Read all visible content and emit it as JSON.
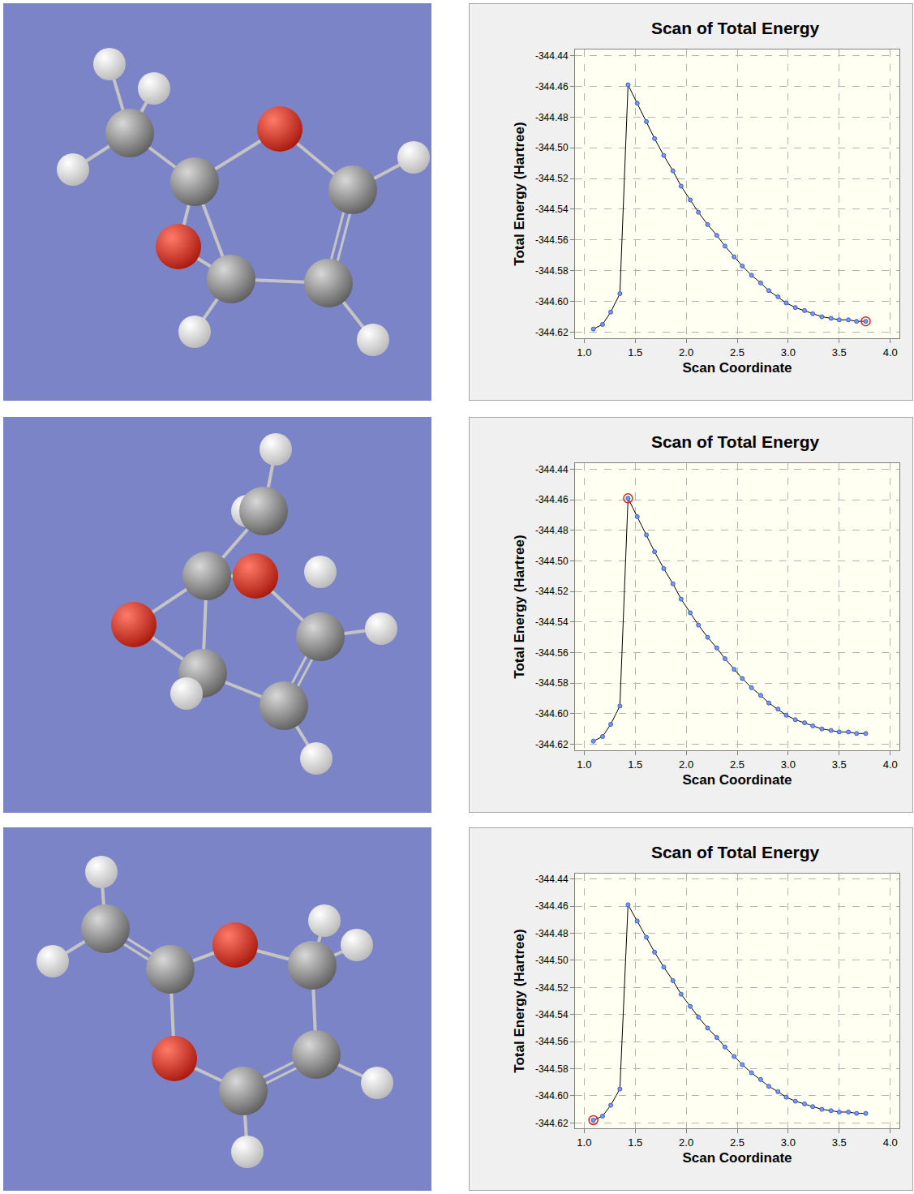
{
  "chart_data": [
    {
      "type": "line",
      "title": "Scan of Total Energy",
      "x_label": "Scan Coordinate",
      "y_label": "Total Energy (Hartree)",
      "x": [
        1.09,
        1.18,
        1.26,
        1.35,
        1.43,
        1.52,
        1.61,
        1.69,
        1.78,
        1.87,
        1.95,
        2.04,
        2.12,
        2.21,
        2.3,
        2.38,
        2.47,
        2.55,
        2.64,
        2.73,
        2.81,
        2.9,
        2.98,
        3.07,
        3.16,
        3.24,
        3.33,
        3.42,
        3.5,
        3.59,
        3.67,
        3.76
      ],
      "values": [
        -344.618,
        -344.615,
        -344.607,
        -344.595,
        -344.459,
        -344.471,
        -344.483,
        -344.494,
        -344.505,
        -344.515,
        -344.525,
        -344.534,
        -344.542,
        -344.55,
        -344.557,
        -344.564,
        -344.571,
        -344.577,
        -344.583,
        -344.588,
        -344.593,
        -344.597,
        -344.601,
        -344.604,
        -344.606,
        -344.608,
        -344.61,
        -344.611,
        -344.612,
        -344.612,
        -344.613,
        -344.613
      ],
      "color": "#000000",
      "marker": "circle",
      "xlim": [
        0.91,
        4.09
      ],
      "ylim": [
        -344.624,
        -344.436
      ],
      "xticks": [
        {
          "value": 1,
          "label": "1.0"
        },
        1.5,
        {
          "value": 2,
          "label": "2.0"
        },
        2.5,
        {
          "value": 3,
          "label": "3.0"
        },
        3.5,
        {
          "value": 4,
          "label": "4.0"
        }
      ],
      "yticks": [
        -344.44,
        -344.46,
        -344.48,
        {
          "value": -344.5,
          "label": "-344.50"
        },
        -344.52,
        -344.54,
        -344.56,
        -344.58,
        {
          "value": -344.6,
          "label": "-344.60"
        },
        -344.62
      ],
      "grid": true,
      "selected": {
        "x": 3.76,
        "y": -344.613
      }
    },
    {
      "type": "line",
      "title": "Scan of Total Energy",
      "x_label": "Scan Coordinate",
      "y_label": "Total Energy (Hartree)",
      "x": [
        1.09,
        1.18,
        1.26,
        1.35,
        1.43,
        1.52,
        1.61,
        1.69,
        1.78,
        1.87,
        1.95,
        2.04,
        2.12,
        2.21,
        2.3,
        2.38,
        2.47,
        2.55,
        2.64,
        2.73,
        2.81,
        2.9,
        2.98,
        3.07,
        3.16,
        3.24,
        3.33,
        3.42,
        3.5,
        3.59,
        3.67,
        3.76
      ],
      "values": [
        -344.618,
        -344.615,
        -344.607,
        -344.595,
        -344.459,
        -344.471,
        -344.483,
        -344.494,
        -344.505,
        -344.515,
        -344.525,
        -344.534,
        -344.542,
        -344.55,
        -344.557,
        -344.564,
        -344.571,
        -344.577,
        -344.583,
        -344.588,
        -344.593,
        -344.597,
        -344.601,
        -344.604,
        -344.606,
        -344.608,
        -344.61,
        -344.611,
        -344.612,
        -344.612,
        -344.613,
        -344.613
      ],
      "color": "#000000",
      "marker": "circle",
      "xlim": [
        0.91,
        4.09
      ],
      "ylim": [
        -344.624,
        -344.436
      ],
      "xticks": [
        {
          "value": 1,
          "label": "1.0"
        },
        1.5,
        {
          "value": 2,
          "label": "2.0"
        },
        2.5,
        {
          "value": 3,
          "label": "3.0"
        },
        3.5,
        {
          "value": 4,
          "label": "4.0"
        }
      ],
      "yticks": [
        -344.44,
        -344.46,
        -344.48,
        {
          "value": -344.5,
          "label": "-344.50"
        },
        -344.52,
        -344.54,
        -344.56,
        -344.58,
        {
          "value": -344.6,
          "label": "-344.60"
        },
        -344.62
      ],
      "grid": true,
      "selected": {
        "x": 1.43,
        "y": -344.459
      }
    },
    {
      "type": "line",
      "title": "Scan of Total Energy",
      "x_label": "Scan Coordinate",
      "y_label": "Total Energy (Hartree)",
      "x": [
        1.09,
        1.18,
        1.26,
        1.35,
        1.43,
        1.52,
        1.61,
        1.69,
        1.78,
        1.87,
        1.95,
        2.04,
        2.12,
        2.21,
        2.3,
        2.38,
        2.47,
        2.55,
        2.64,
        2.73,
        2.81,
        2.9,
        2.98,
        3.07,
        3.16,
        3.24,
        3.33,
        3.42,
        3.5,
        3.59,
        3.67,
        3.76
      ],
      "values": [
        -344.618,
        -344.615,
        -344.607,
        -344.595,
        -344.459,
        -344.471,
        -344.483,
        -344.494,
        -344.505,
        -344.515,
        -344.525,
        -344.534,
        -344.542,
        -344.55,
        -344.557,
        -344.564,
        -344.571,
        -344.577,
        -344.583,
        -344.588,
        -344.593,
        -344.597,
        -344.601,
        -344.604,
        -344.606,
        -344.608,
        -344.61,
        -344.611,
        -344.612,
        -344.612,
        -344.613,
        -344.613
      ],
      "color": "#000000",
      "marker": "circle",
      "xlim": [
        0.91,
        4.09
      ],
      "ylim": [
        -344.624,
        -344.436
      ],
      "xticks": [
        {
          "value": 1,
          "label": "1.0"
        },
        1.5,
        {
          "value": 2,
          "label": "2.0"
        },
        2.5,
        {
          "value": 3,
          "label": "3.0"
        },
        3.5,
        {
          "value": 4,
          "label": "4.0"
        }
      ],
      "yticks": [
        -344.44,
        -344.46,
        -344.48,
        {
          "value": -344.5,
          "label": "-344.50"
        },
        -344.52,
        -344.54,
        -344.56,
        -344.58,
        {
          "value": -344.6,
          "label": "-344.60"
        },
        -344.62
      ],
      "grid": true,
      "selected": {
        "x": 1.09,
        "y": -344.618
      }
    }
  ]
}
